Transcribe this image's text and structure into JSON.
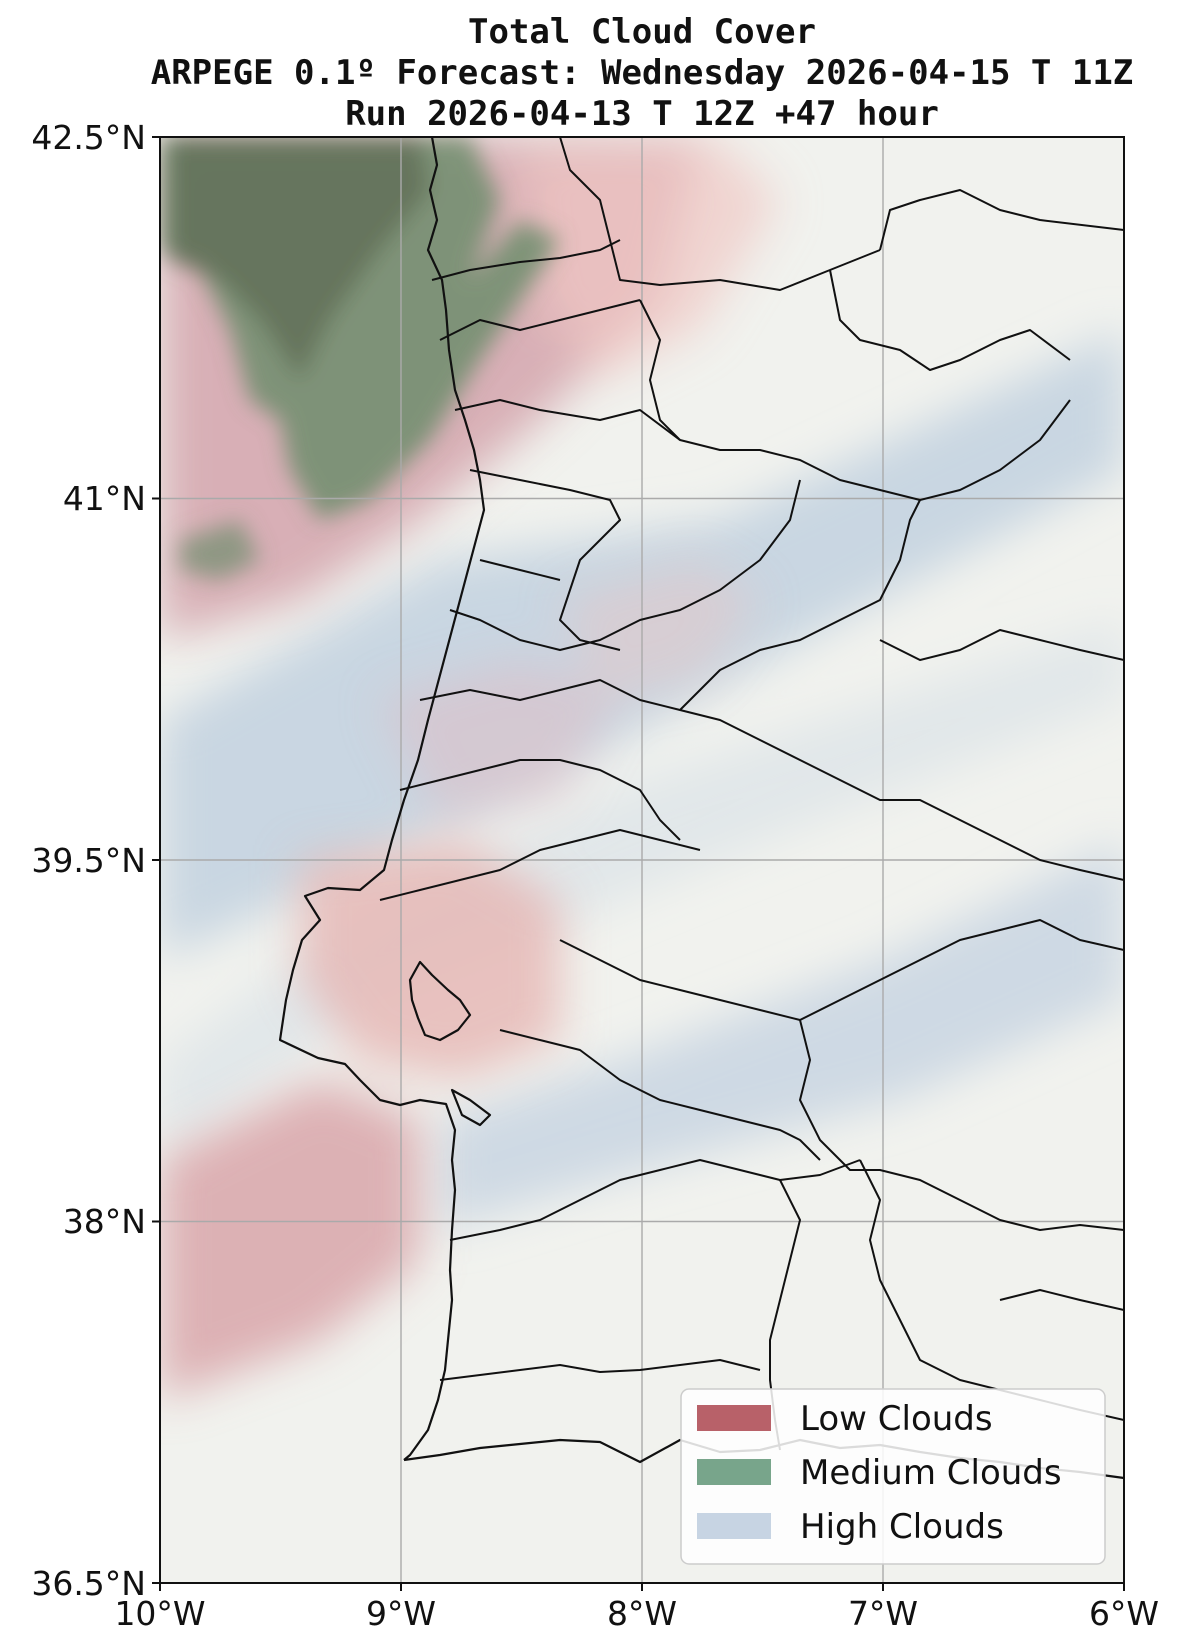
{
  "title": {
    "line1": "Total Cloud Cover",
    "line2": "ARPEGE 0.1º Forecast: Wednesday 2026-04-15 T 11Z",
    "line3": "Run 2026-04-13 T 12Z +47 hour"
  },
  "map": {
    "lon_range": [
      -10,
      -6
    ],
    "lat_range": [
      36.5,
      42.5
    ],
    "grid": true,
    "x_ticks": [
      {
        "value": -10,
        "label": "10°W"
      },
      {
        "value": -9,
        "label": "9°W"
      },
      {
        "value": -8,
        "label": "8°W"
      },
      {
        "value": -7,
        "label": "7°W"
      },
      {
        "value": -6,
        "label": "6°W"
      }
    ],
    "y_ticks": [
      {
        "value": 42.5,
        "label": "42.5°N"
      },
      {
        "value": 41,
        "label": "41°N"
      },
      {
        "value": 39.5,
        "label": "39.5°N"
      },
      {
        "value": 38,
        "label": "38°N"
      },
      {
        "value": 36.5,
        "label": "36.5°N"
      }
    ],
    "background_color": "#f1f2ee"
  },
  "legend": {
    "placement": "bottom-right",
    "items": [
      {
        "label": "Low Clouds",
        "color": "#b86169"
      },
      {
        "label": "Medium Clouds",
        "color": "#78a58b"
      },
      {
        "label": "High Clouds",
        "color": "#c7d4e3"
      }
    ]
  }
}
